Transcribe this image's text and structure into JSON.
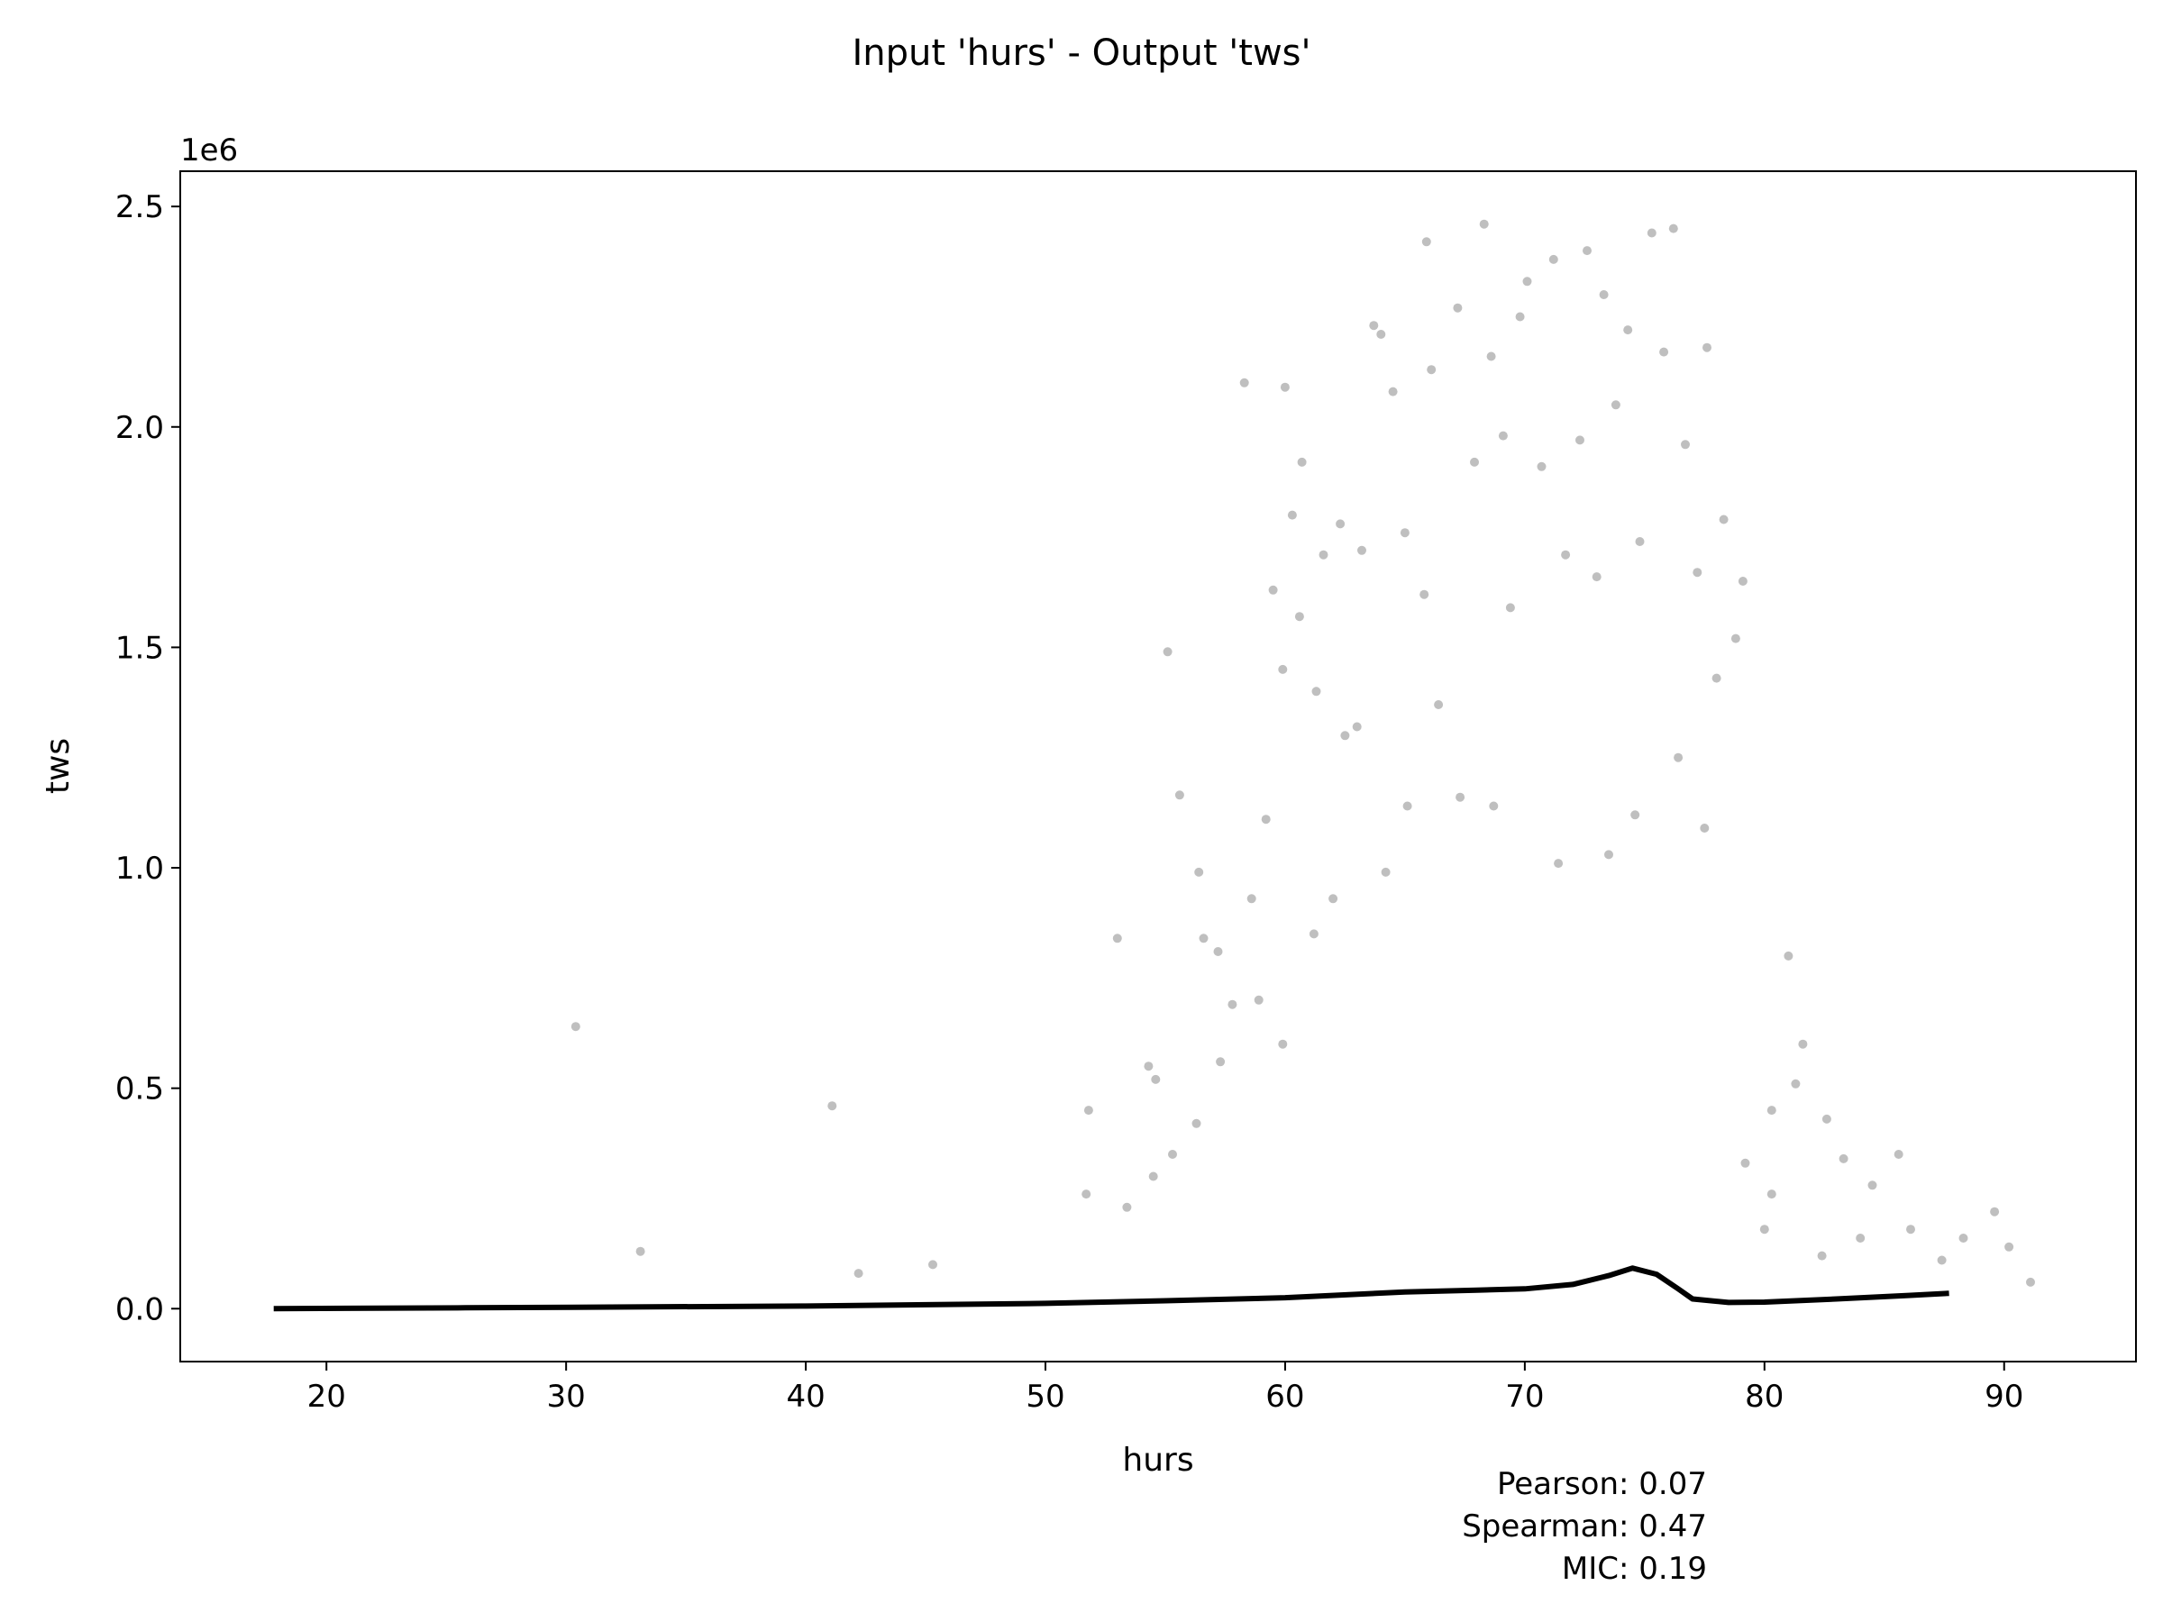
{
  "chart_data": {
    "type": "scatter",
    "title": "Input 'hurs' - Output 'tws'",
    "xlabel": "hurs",
    "ylabel": "tws",
    "y_offset_label": "1e6",
    "xlim": [
      13.9,
      95.5
    ],
    "ylim": [
      -120000,
      2580000
    ],
    "x_ticks": [
      20,
      30,
      40,
      50,
      60,
      70,
      80,
      90
    ],
    "x_tick_labels": [
      "20",
      "30",
      "40",
      "50",
      "60",
      "70",
      "80",
      "90"
    ],
    "y_ticks": [
      0,
      500000,
      1000000,
      1500000,
      2000000,
      2500000
    ],
    "y_tick_labels": [
      "0.0",
      "0.5",
      "1.0",
      "1.5",
      "2.0",
      "2.5"
    ],
    "grid": false,
    "point_color": "#000000",
    "point_opacity": 0.25,
    "series": [
      {
        "type": "scatter",
        "points": [
          [
            30.4,
            640000
          ],
          [
            41.1,
            460000
          ],
          [
            33.1,
            130000
          ],
          [
            42.2,
            80000
          ],
          [
            45.3,
            100000
          ],
          [
            51.8,
            450000
          ],
          [
            51.7,
            260000
          ],
          [
            53.0,
            840000
          ],
          [
            54.3,
            550000
          ],
          [
            54.6,
            520000
          ],
          [
            55.1,
            1490000
          ],
          [
            55.6,
            1165000
          ],
          [
            56.4,
            990000
          ],
          [
            56.6,
            840000
          ],
          [
            57.2,
            810000
          ],
          [
            57.8,
            690000
          ],
          [
            58.3,
            2100000
          ],
          [
            58.6,
            930000
          ],
          [
            59.2,
            1110000
          ],
          [
            59.5,
            1630000
          ],
          [
            59.9,
            1450000
          ],
          [
            60.0,
            2090000
          ],
          [
            60.3,
            1800000
          ],
          [
            60.6,
            1570000
          ],
          [
            60.7,
            1920000
          ],
          [
            61.3,
            1400000
          ],
          [
            61.6,
            1710000
          ],
          [
            62.3,
            1780000
          ],
          [
            62.5,
            1300000
          ],
          [
            63.0,
            1320000
          ],
          [
            63.2,
            1720000
          ],
          [
            63.7,
            2230000
          ],
          [
            64.0,
            2210000
          ],
          [
            64.5,
            2080000
          ],
          [
            65.0,
            1760000
          ],
          [
            65.8,
            1620000
          ],
          [
            65.9,
            2420000
          ],
          [
            66.1,
            2130000
          ],
          [
            66.4,
            1370000
          ],
          [
            67.2,
            2270000
          ],
          [
            67.9,
            1920000
          ],
          [
            68.3,
            2460000
          ],
          [
            68.6,
            2160000
          ],
          [
            69.1,
            1980000
          ],
          [
            69.4,
            1590000
          ],
          [
            69.8,
            2250000
          ],
          [
            70.1,
            2330000
          ],
          [
            70.7,
            1910000
          ],
          [
            71.2,
            2380000
          ],
          [
            71.7,
            1710000
          ],
          [
            72.3,
            1970000
          ],
          [
            72.6,
            2400000
          ],
          [
            73.0,
            1660000
          ],
          [
            73.3,
            2300000
          ],
          [
            73.8,
            2050000
          ],
          [
            74.3,
            2220000
          ],
          [
            74.8,
            1740000
          ],
          [
            75.3,
            2440000
          ],
          [
            75.8,
            2170000
          ],
          [
            76.2,
            2450000
          ],
          [
            76.7,
            1960000
          ],
          [
            77.2,
            1670000
          ],
          [
            77.6,
            2180000
          ],
          [
            78.0,
            1430000
          ],
          [
            78.3,
            1790000
          ],
          [
            78.8,
            1520000
          ],
          [
            79.1,
            1650000
          ],
          [
            77.5,
            1090000
          ],
          [
            76.4,
            1250000
          ],
          [
            74.6,
            1120000
          ],
          [
            73.5,
            1030000
          ],
          [
            71.4,
            1010000
          ],
          [
            68.7,
            1140000
          ],
          [
            67.3,
            1160000
          ],
          [
            65.1,
            1140000
          ],
          [
            64.2,
            990000
          ],
          [
            62.0,
            930000
          ],
          [
            61.2,
            850000
          ],
          [
            58.9,
            700000
          ],
          [
            59.9,
            600000
          ],
          [
            57.3,
            560000
          ],
          [
            56.3,
            420000
          ],
          [
            55.3,
            350000
          ],
          [
            54.5,
            300000
          ],
          [
            53.4,
            230000
          ],
          [
            81.0,
            800000
          ],
          [
            81.6,
            600000
          ],
          [
            80.3,
            450000
          ],
          [
            81.3,
            510000
          ],
          [
            82.6,
            430000
          ],
          [
            83.3,
            340000
          ],
          [
            84.5,
            280000
          ],
          [
            85.6,
            350000
          ],
          [
            86.1,
            180000
          ],
          [
            88.3,
            160000
          ],
          [
            89.6,
            220000
          ],
          [
            90.2,
            140000
          ],
          [
            91.1,
            60000
          ],
          [
            87.4,
            110000
          ],
          [
            84.0,
            160000
          ],
          [
            82.4,
            120000
          ],
          [
            80.0,
            180000
          ],
          [
            79.2,
            330000
          ],
          [
            80.3,
            260000
          ]
        ]
      }
    ],
    "smoothed_line": {
      "color": "#000000",
      "outline_color": "#ffffff",
      "points": [
        [
          17.8,
          0
        ],
        [
          25.8,
          2000
        ],
        [
          40.0,
          6000
        ],
        [
          50.0,
          12000
        ],
        [
          55.0,
          18000
        ],
        [
          60.0,
          25000
        ],
        [
          65.0,
          38000
        ],
        [
          68.0,
          42000
        ],
        [
          70.0,
          45000
        ],
        [
          72.0,
          55000
        ],
        [
          73.5,
          75000
        ],
        [
          74.5,
          92000
        ],
        [
          75.5,
          78000
        ],
        [
          76.4,
          45000
        ],
        [
          77.0,
          22000
        ],
        [
          78.5,
          14000
        ],
        [
          80.0,
          15000
        ],
        [
          83.0,
          22000
        ],
        [
          86.0,
          30000
        ],
        [
          87.7,
          35000
        ]
      ]
    },
    "annotations": {
      "pearson": "Pearson: 0.07",
      "spearman": "Spearman: 0.47",
      "mic": "MIC: 0.19"
    }
  }
}
